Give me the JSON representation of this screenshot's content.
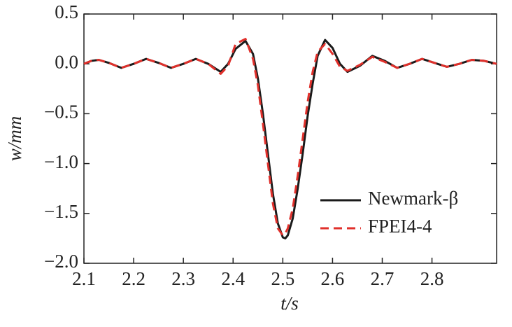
{
  "chart_data": {
    "type": "line",
    "xlabel": "t/s",
    "ylabel": "w/mm",
    "x": [
      2.1,
      2.115,
      2.13,
      2.15,
      2.175,
      2.2,
      2.225,
      2.25,
      2.275,
      2.3,
      2.325,
      2.35,
      2.375,
      2.39,
      2.405,
      2.425,
      2.44,
      2.45,
      2.46,
      2.47,
      2.48,
      2.49,
      2.5,
      2.505,
      2.51,
      2.52,
      2.53,
      2.54,
      2.55,
      2.56,
      2.57,
      2.585,
      2.6,
      2.615,
      2.63,
      2.655,
      2.68,
      2.705,
      2.73,
      2.755,
      2.78,
      2.805,
      2.83,
      2.855,
      2.88,
      2.905,
      2.93
    ],
    "series": [
      {
        "name": "Newmark-β",
        "color": "#1a1a1a",
        "dash": false,
        "values": [
          0.0,
          0.03,
          0.04,
          0.01,
          -0.04,
          0.0,
          0.05,
          0.01,
          -0.04,
          0.0,
          0.05,
          0.0,
          -0.08,
          0.0,
          0.15,
          0.23,
          0.1,
          -0.15,
          -0.5,
          -0.9,
          -1.3,
          -1.6,
          -1.74,
          -1.75,
          -1.72,
          -1.55,
          -1.25,
          -0.9,
          -0.52,
          -0.2,
          0.08,
          0.24,
          0.16,
          0.0,
          -0.08,
          -0.02,
          0.08,
          0.03,
          -0.04,
          0.0,
          0.05,
          0.01,
          -0.03,
          0.0,
          0.04,
          0.03,
          0.0
        ]
      },
      {
        "name": "FPEI4-4",
        "color": "#e0302b",
        "dash": true,
        "values": [
          0.0,
          0.03,
          0.04,
          0.01,
          -0.04,
          0.0,
          0.05,
          0.01,
          -0.04,
          0.0,
          0.05,
          0.0,
          -0.1,
          -0.02,
          0.2,
          0.25,
          0.05,
          -0.22,
          -0.6,
          -1.0,
          -1.4,
          -1.65,
          -1.72,
          -1.7,
          -1.65,
          -1.45,
          -1.12,
          -0.75,
          -0.38,
          -0.08,
          0.12,
          0.2,
          0.1,
          -0.03,
          -0.07,
          -0.01,
          0.07,
          0.02,
          -0.04,
          0.0,
          0.05,
          0.01,
          -0.03,
          0.0,
          0.04,
          0.03,
          0.0
        ]
      }
    ],
    "xlim": [
      2.1,
      2.93
    ],
    "xticks": [
      2.1,
      2.2,
      2.3,
      2.4,
      2.5,
      2.6,
      2.7,
      2.8
    ],
    "ylim": [
      -2.0,
      0.5
    ],
    "yticks": [
      {
        "value": 0.5,
        "label": "0.5"
      },
      {
        "value": 0,
        "label": "0.0"
      },
      {
        "value": -0.5,
        "label": "−0.5"
      },
      {
        "value": -1.0,
        "label": "−1.0"
      },
      {
        "value": -1.5,
        "label": "−1.5"
      },
      {
        "value": -2.0,
        "label": "−2.0"
      }
    ],
    "grid": false,
    "legend": "lower right"
  }
}
